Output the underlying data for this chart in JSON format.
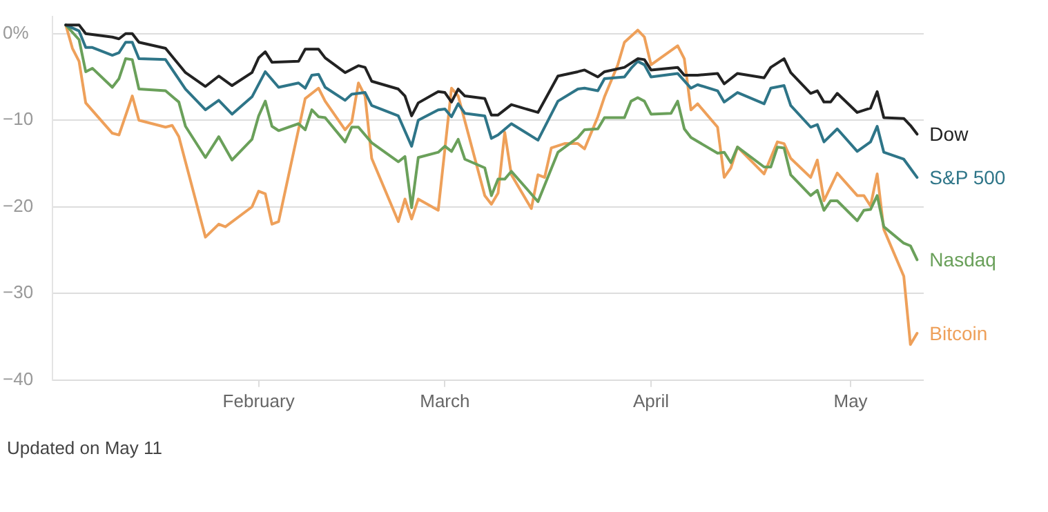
{
  "chart_data": {
    "type": "line",
    "annotations": [
      "Updated on May 11"
    ],
    "xlim": [
      "--01-01",
      "--05-12"
    ],
    "xticks": [
      {
        "value": "--02-01",
        "label": "February"
      },
      {
        "value": "--03-01",
        "label": "March"
      },
      {
        "value": "--04-01",
        "label": "April"
      },
      {
        "value": "--05-01",
        "label": "May"
      }
    ],
    "ylim": [
      -40,
      2
    ],
    "yticks": [
      {
        "value": 0,
        "label": "0%"
      },
      {
        "value": -10,
        "label": "−10"
      },
      {
        "value": -20,
        "label": "−20"
      },
      {
        "value": -30,
        "label": "−30"
      },
      {
        "value": -40,
        "label": "−40"
      }
    ],
    "grid": "y",
    "legend": false,
    "marker": "none",
    "line_style": "solid",
    "series": [
      {
        "name": "Dow",
        "color": "#222222",
        "x": [
          "--01-03",
          "--01-05",
          "--01-06",
          "--01-10",
          "--01-11",
          "--01-12",
          "--01-13",
          "--01-14",
          "--01-18",
          "--01-21",
          "--01-24",
          "--01-26",
          "--01-28",
          "--01-31",
          "--02-01",
          "--02-02",
          "--02-03",
          "--02-07",
          "--02-08",
          "--02-10",
          "--02-11",
          "--02-14",
          "--02-16",
          "--02-17",
          "--02-18",
          "--02-22",
          "--02-23",
          "--02-24",
          "--02-25",
          "--02-28",
          "--03-01",
          "--03-02",
          "--03-03",
          "--03-04",
          "--03-07",
          "--03-08",
          "--03-09",
          "--03-11",
          "--03-15",
          "--03-18",
          "--03-21",
          "--03-22",
          "--03-24",
          "--03-25",
          "--03-28",
          "--03-29",
          "--03-30",
          "--03-31",
          "--04-01",
          "--04-05",
          "--04-06",
          "--04-08",
          "--04-11",
          "--04-12",
          "--04-14",
          "--04-18",
          "--04-19",
          "--04-21",
          "--04-22",
          "--04-25",
          "--04-26",
          "--04-27",
          "--04-28",
          "--04-29",
          "--05-02",
          "--05-04",
          "--05-05",
          "--05-06",
          "--05-09",
          "--05-10",
          "--05-11"
        ],
        "values": [
          1,
          1,
          0,
          -0.4,
          -0.6,
          0,
          0,
          -1,
          -1.7,
          -4.5,
          -6.1,
          -4.9,
          -6,
          -4.5,
          -2.8,
          -2.1,
          -3.3,
          -3.2,
          -1.8,
          -1.8,
          -2.8,
          -4.5,
          -3.7,
          -3.9,
          -5.5,
          -6.4,
          -7.2,
          -9.5,
          -8,
          -6.7,
          -6.8,
          -7.9,
          -6.4,
          -7.2,
          -7.5,
          -9.4,
          -9.4,
          -8.2,
          -9.1,
          -4.9,
          -4.4,
          -4.2,
          -5,
          -4.4,
          -3.9,
          -3.4,
          -2.9,
          -3,
          -4.2,
          -3.9,
          -4.8,
          -4.8,
          -4.6,
          -5.8,
          -4.6,
          -5.1,
          -3.9,
          -2.9,
          -4.5,
          -6.9,
          -6.6,
          -7.9,
          -7.9,
          -6.9,
          -9.1,
          -8.6,
          -6.7,
          -9.7,
          -9.8,
          -10.6,
          -11.6
        ]
      },
      {
        "name": "S&P 500",
        "color": "#2e7588",
        "x": [
          "--01-03",
          "--01-05",
          "--01-06",
          "--01-07",
          "--01-10",
          "--01-11",
          "--01-12",
          "--01-13",
          "--01-14",
          "--01-18",
          "--01-21",
          "--01-24",
          "--01-26",
          "--01-28",
          "--01-31",
          "--02-02",
          "--02-04",
          "--02-07",
          "--02-08",
          "--02-09",
          "--02-10",
          "--02-11",
          "--02-14",
          "--02-15",
          "--02-17",
          "--02-18",
          "--02-22",
          "--02-24",
          "--02-25",
          "--02-28",
          "--03-01",
          "--03-02",
          "--03-03",
          "--03-04",
          "--03-07",
          "--03-08",
          "--03-09",
          "--03-11",
          "--03-15",
          "--03-18",
          "--03-21",
          "--03-22",
          "--03-24",
          "--03-25",
          "--03-28",
          "--03-29",
          "--03-30",
          "--03-31",
          "--04-01",
          "--04-05",
          "--04-07",
          "--04-08",
          "--04-11",
          "--04-12",
          "--04-14",
          "--04-18",
          "--04-19",
          "--04-21",
          "--04-22",
          "--04-25",
          "--04-26",
          "--04-27",
          "--04-29",
          "--05-02",
          "--05-04",
          "--05-05",
          "--05-06",
          "--05-09",
          "--05-11"
        ],
        "values": [
          1,
          0.3,
          -1.6,
          -1.6,
          -2.5,
          -2.2,
          -1,
          -1,
          -2.9,
          -3,
          -6.4,
          -8.8,
          -7.7,
          -9.3,
          -7.3,
          -4.4,
          -6.2,
          -5.7,
          -6.3,
          -4.8,
          -4.7,
          -6.2,
          -7.7,
          -7,
          -6.8,
          -8.3,
          -9.5,
          -13,
          -10,
          -8.8,
          -8.7,
          -9.6,
          -8.1,
          -9.2,
          -9.5,
          -12.1,
          -11.7,
          -10.4,
          -12.3,
          -7.8,
          -6.4,
          -6.3,
          -6.6,
          -5.2,
          -5,
          -4,
          -3.2,
          -3.6,
          -5,
          -4.6,
          -6.3,
          -5.9,
          -6.6,
          -7.9,
          -6.8,
          -8.1,
          -6.3,
          -6,
          -8.3,
          -10.8,
          -10.5,
          -12.5,
          -11,
          -13.6,
          -12.5,
          -10.7,
          -13.7,
          -14.5,
          -16.6
        ]
      },
      {
        "name": "Nasdaq",
        "color": "#6aa05a",
        "x": [
          "--01-03",
          "--01-05",
          "--01-06",
          "--01-07",
          "--01-10",
          "--01-11",
          "--01-12",
          "--01-13",
          "--01-14",
          "--01-18",
          "--01-20",
          "--01-21",
          "--01-24",
          "--01-26",
          "--01-28",
          "--01-31",
          "--02-01",
          "--02-02",
          "--02-03",
          "--02-04",
          "--02-07",
          "--02-08",
          "--02-09",
          "--02-10",
          "--02-11",
          "--02-14",
          "--02-15",
          "--02-16",
          "--02-18",
          "--02-22",
          "--02-23",
          "--02-24",
          "--02-25",
          "--02-28",
          "--03-01",
          "--03-02",
          "--03-03",
          "--03-04",
          "--03-07",
          "--03-08",
          "--03-09",
          "--03-10",
          "--03-11",
          "--03-15",
          "--03-18",
          "--03-21",
          "--03-22",
          "--03-24",
          "--03-25",
          "--03-28",
          "--03-29",
          "--03-30",
          "--03-31",
          "--04-01",
          "--04-04",
          "--04-05",
          "--04-06",
          "--04-07",
          "--04-11",
          "--04-12",
          "--04-13",
          "--04-14",
          "--04-18",
          "--04-19",
          "--04-20",
          "--04-21",
          "--04-22",
          "--04-25",
          "--04-26",
          "--04-27",
          "--04-28",
          "--04-29",
          "--05-02",
          "--05-03",
          "--05-04",
          "--05-05",
          "--05-06",
          "--05-09",
          "--05-10",
          "--05-11"
        ],
        "values": [
          1,
          -0.7,
          -4.4,
          -4,
          -6.2,
          -5.2,
          -2.9,
          -3,
          -6.4,
          -6.6,
          -7.9,
          -10.7,
          -14.3,
          -11.9,
          -14.6,
          -12.2,
          -9.5,
          -7.8,
          -10.7,
          -11.2,
          -10.4,
          -11.1,
          -8.8,
          -9.6,
          -9.7,
          -12.5,
          -10.8,
          -10.8,
          -12.6,
          -14.8,
          -14.2,
          -20.1,
          -14.3,
          -13.7,
          -13,
          -13.6,
          -12.2,
          -14.5,
          -15.5,
          -18.7,
          -16.8,
          -16.8,
          -15.9,
          -19.4,
          -13.7,
          -12,
          -11.1,
          -11,
          -9.7,
          -9.7,
          -7.8,
          -7.4,
          -7.8,
          -9.3,
          -9.2,
          -7.8,
          -11,
          -12,
          -13.8,
          -13.7,
          -14.9,
          -13.1,
          -15.4,
          -15.4,
          -13.1,
          -13.2,
          -16.3,
          -18.7,
          -18.1,
          -20.4,
          -19.3,
          -19.3,
          -21.6,
          -20.4,
          -20.3,
          -18.7,
          -22.3,
          -24.2,
          -24.5,
          -26.1
        ]
      },
      {
        "name": "Bitcoin",
        "color": "#eea05a",
        "x": [
          "--01-03",
          "--01-04",
          "--01-05",
          "--01-06",
          "--01-10",
          "--01-11",
          "--01-13",
          "--01-14",
          "--01-18",
          "--01-19",
          "--01-20",
          "--01-21",
          "--01-24",
          "--01-26",
          "--01-27",
          "--01-31",
          "--02-01",
          "--02-02",
          "--02-03",
          "--02-04",
          "--02-08",
          "--02-10",
          "--02-11",
          "--02-14",
          "--02-15",
          "--02-16",
          "--02-17",
          "--02-18",
          "--02-22",
          "--02-23",
          "--02-24",
          "--02-25",
          "--02-28",
          "--03-02",
          "--03-03",
          "--03-07",
          "--03-08",
          "--03-09",
          "--03-10",
          "--03-11",
          "--03-14",
          "--03-15",
          "--03-16",
          "--03-17",
          "--03-19",
          "--03-21",
          "--03-22",
          "--03-24",
          "--03-25",
          "--03-27",
          "--03-28",
          "--03-30",
          "--03-31",
          "--04-01",
          "--04-05",
          "--04-06",
          "--04-07",
          "--04-08",
          "--04-11",
          "--04-12",
          "--04-13",
          "--04-14",
          "--04-18",
          "--04-20",
          "--04-21",
          "--04-22",
          "--04-25",
          "--04-26",
          "--04-27",
          "--04-29",
          "--05-02",
          "--05-03",
          "--05-04",
          "--05-05",
          "--05-06",
          "--05-09",
          "--05-10",
          "--05-11"
        ],
        "values": [
          1,
          -1.7,
          -3.2,
          -8,
          -11.5,
          -11.7,
          -7.2,
          -10,
          -10.8,
          -10.6,
          -11.9,
          -14.8,
          -23.5,
          -22,
          -22.3,
          -20,
          -18.2,
          -18.5,
          -22,
          -21.7,
          -7.5,
          -6.3,
          -7.8,
          -11.1,
          -10.2,
          -5.7,
          -7.2,
          -14.4,
          -21.7,
          -19.1,
          -21.4,
          -19.1,
          -20.4,
          -6.3,
          -7.2,
          -18.7,
          -19.7,
          -18.4,
          -11.4,
          -16.3,
          -20.2,
          -16.3,
          -16.6,
          -13.2,
          -12.7,
          -12.7,
          -13.3,
          -9.6,
          -7.3,
          -3.6,
          -1,
          0.4,
          -0.4,
          -3.6,
          -1.4,
          -2.9,
          -8.8,
          -8.1,
          -10.8,
          -16.6,
          -15.5,
          -13.1,
          -16.2,
          -12.5,
          -12.7,
          -14.4,
          -16.6,
          -14.6,
          -19.3,
          -16.1,
          -18.7,
          -18.7,
          -19.9,
          -16.2,
          -22.6,
          -28,
          -35.9,
          -34.6
        ]
      }
    ]
  }
}
